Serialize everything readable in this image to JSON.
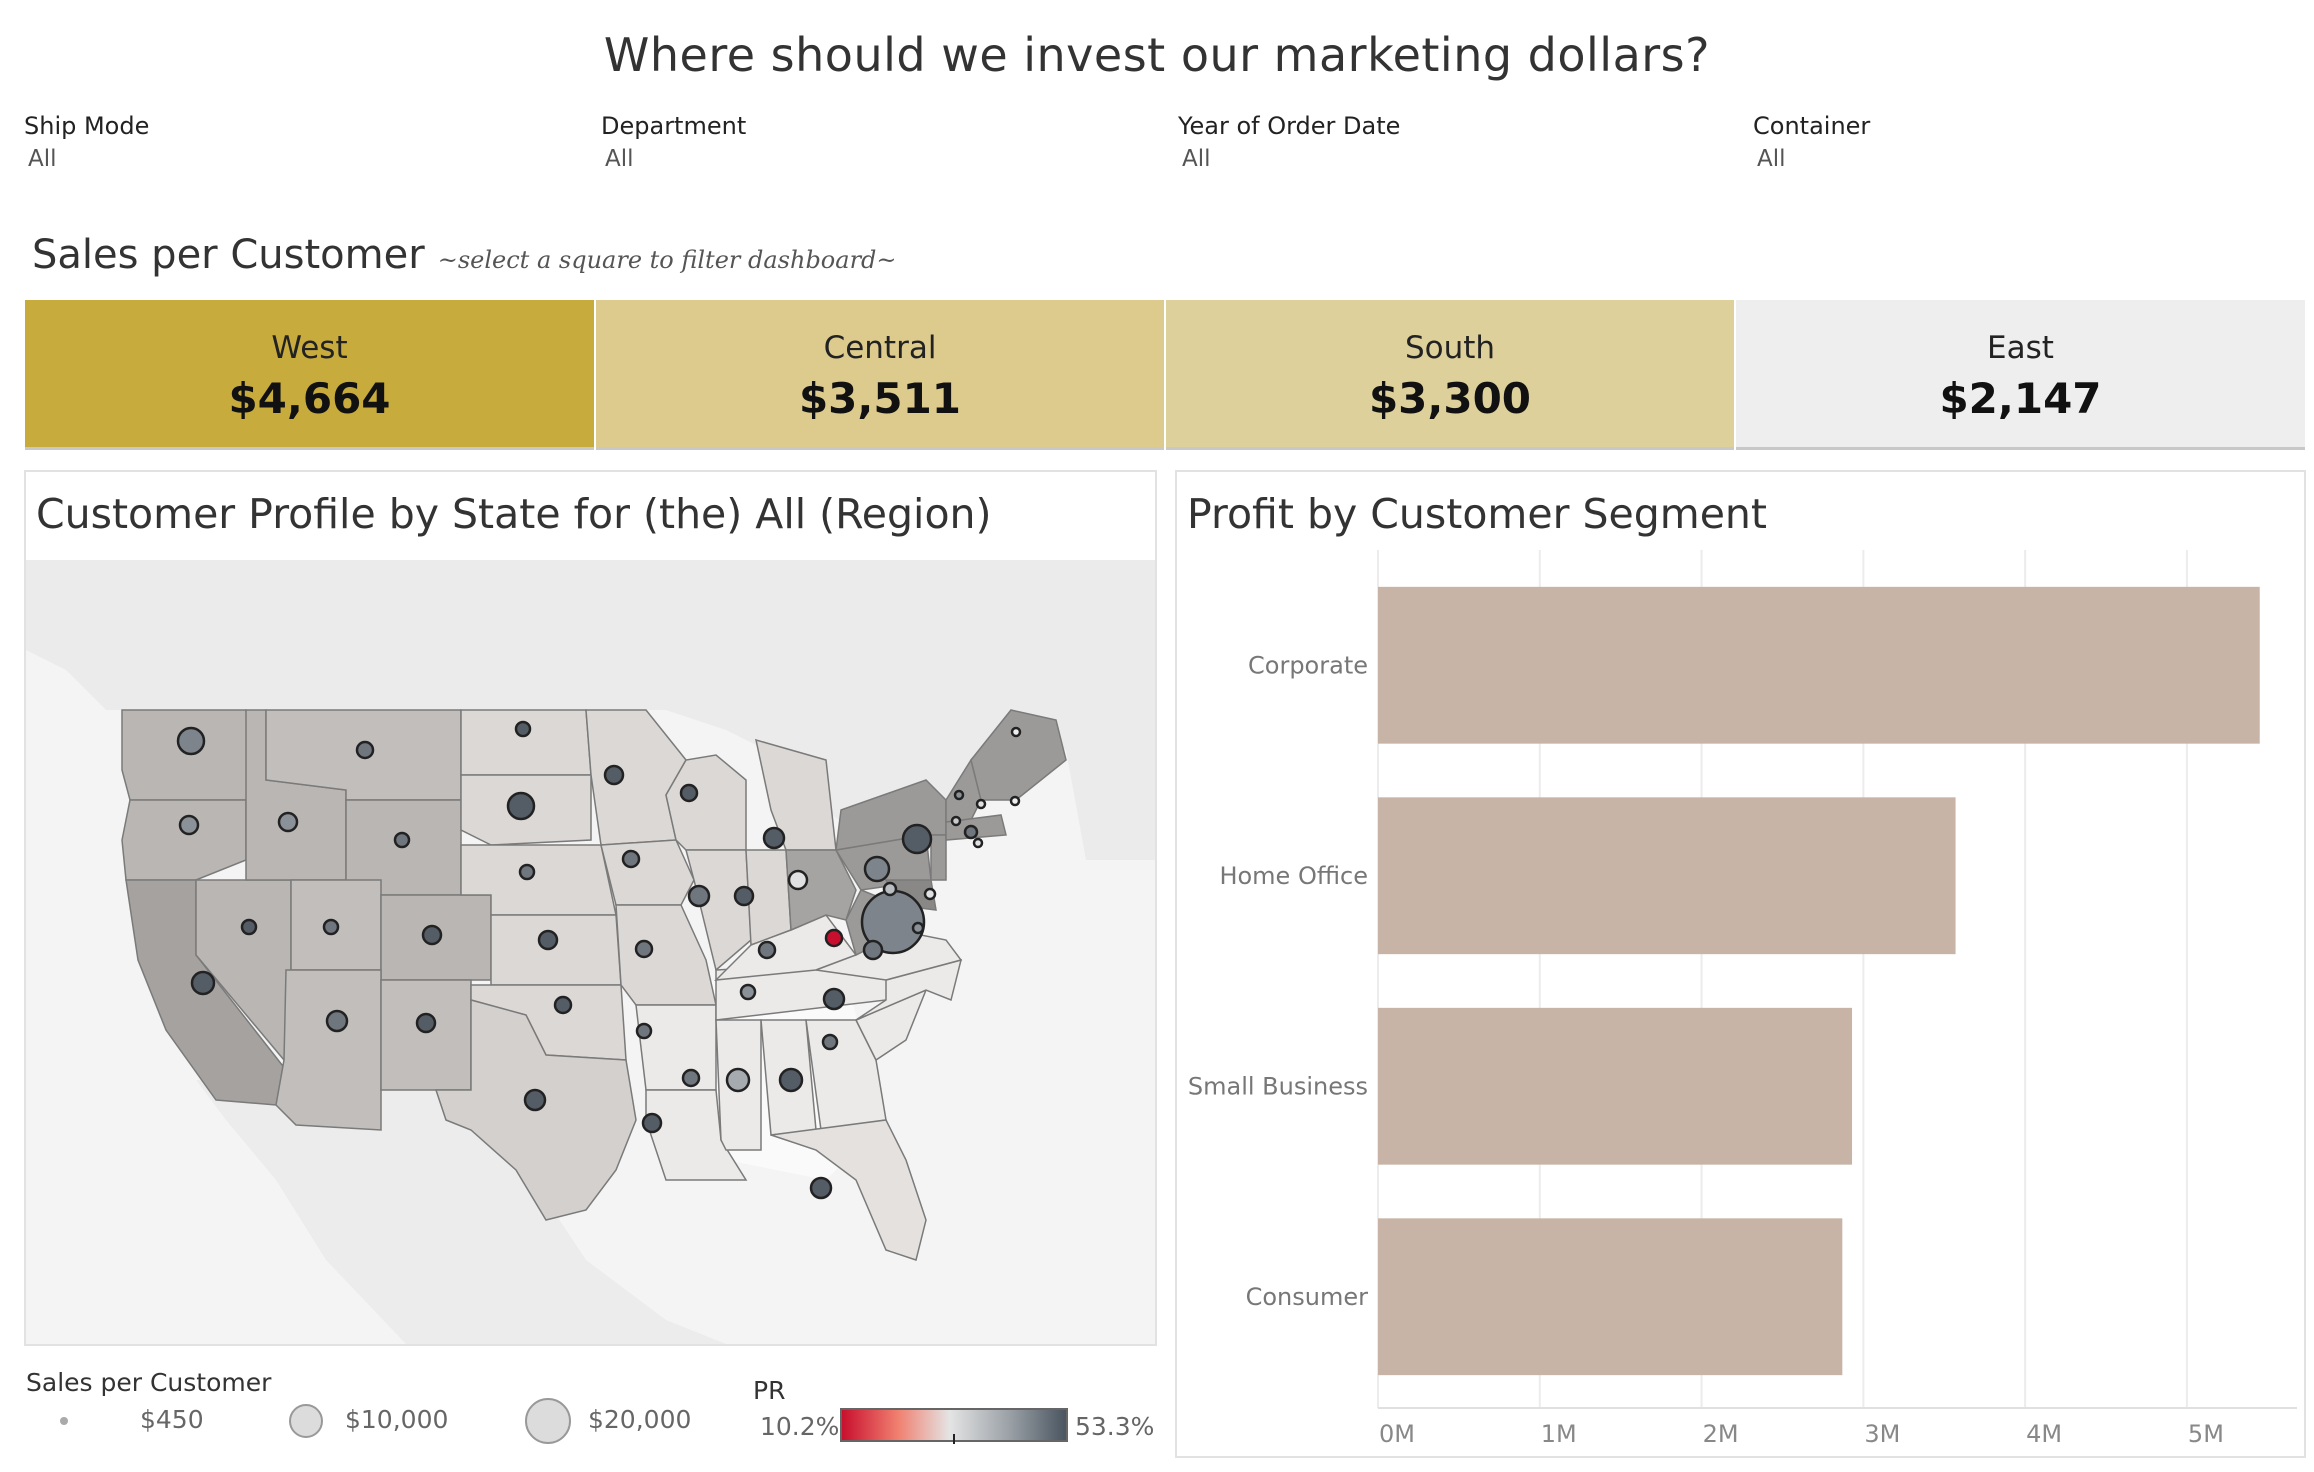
{
  "dashboard": {
    "title": "Where should we invest our marketing dollars?"
  },
  "filters": [
    {
      "label": "Ship Mode",
      "value": "All"
    },
    {
      "label": "Department",
      "value": "All"
    },
    {
      "label": "Year of Order Date",
      "value": "All"
    },
    {
      "label": "Container",
      "value": "All"
    }
  ],
  "sales_section": {
    "title": "Sales per Customer",
    "hint": "~select a square to filter dashboard~"
  },
  "regions": [
    {
      "name": "West",
      "value": "$4,664",
      "color": "#c8ab3d"
    },
    {
      "name": "Central",
      "value": "$3,511",
      "color": "#dccb8d"
    },
    {
      "name": "South",
      "value": "$3,300",
      "color": "#ded09a"
    },
    {
      "name": "East",
      "value": "$2,147",
      "color": "#eeeeee"
    }
  ],
  "map_panel": {
    "title": "Customer Profile by State for (the) All (Region)"
  },
  "legend": {
    "size_title": "Sales per Customer",
    "size_items": [
      "$450",
      "$10,000",
      "$20,000"
    ],
    "color_title": "PR",
    "color_min": "10.2%",
    "color_max": "53.3%",
    "color_low": "#c8102e",
    "color_mid": "#e4e4e4",
    "color_high": "#4a5560"
  },
  "bar_panel": {
    "title": "Profit by Customer Segment"
  },
  "chart_data": {
    "type": "bar",
    "orientation": "horizontal",
    "title": "Profit by Customer Segment",
    "categories": [
      "Corporate",
      "Home Office",
      "Small Business",
      "Consumer"
    ],
    "values": [
      5.45,
      3.57,
      2.93,
      2.87
    ],
    "unit": "M",
    "xlim": [
      0,
      5.6
    ],
    "x_ticks": [
      "0M",
      "1M",
      "2M",
      "3M",
      "4M",
      "5M"
    ],
    "bar_color": "#c8b4a6",
    "grid": true
  }
}
